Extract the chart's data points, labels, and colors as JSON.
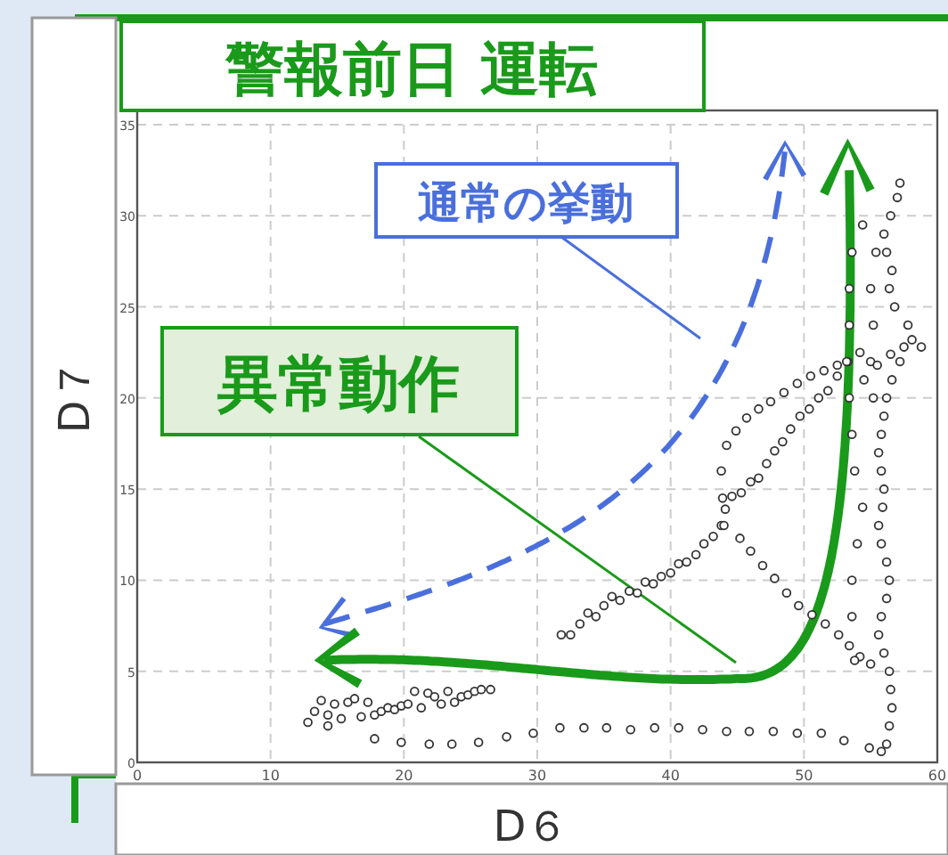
{
  "chart_data": {
    "type": "scatter",
    "title": "警報前日 運転",
    "xlabel": "D６",
    "ylabel": "D７",
    "annotations": [
      "通常の挙動",
      "異常動作"
    ],
    "x": [
      12.8,
      13.3,
      13.8,
      14.3,
      14.8,
      15.3,
      15.8,
      16.3,
      16.8,
      17.3,
      17.8,
      18.3,
      18.8,
      19.3,
      19.8,
      20.3,
      20.8,
      21.3,
      21.8,
      22.3,
      22.8,
      23.3,
      23.8,
      24.3,
      24.8,
      25.3,
      25.8,
      26.5,
      31.8,
      32.5,
      33.2,
      33.8,
      34.4,
      35,
      35.6,
      36.2,
      36.9,
      37.5,
      38.1,
      38.7,
      39.3,
      40,
      40.6,
      41.2,
      41.9,
      42.5,
      43.2,
      43.8,
      44.1,
      44.6,
      45.3,
      46,
      46.6,
      47.2,
      47.8,
      48.4,
      49,
      49.7,
      50.4,
      51.1,
      51.8,
      52.5,
      53.3,
      54.2,
      44,
      43.9,
      43.8,
      44.2,
      44.9,
      45.7,
      46.6,
      47.5,
      48.5,
      49.5,
      50.5,
      51.5,
      52.5,
      45.2,
      46,
      46.9,
      47.8,
      48.7,
      49.6,
      50.6,
      51.6,
      52.6,
      53.4,
      54.2,
      55,
      14.3,
      17.8,
      19.8,
      21.9,
      23.6,
      25.6,
      27.7,
      29.7,
      31.7,
      33.5,
      35.2,
      37,
      38.8,
      40.6,
      42.4,
      44.2,
      45.9,
      47.7,
      49.5,
      51.3,
      53,
      54.9,
      55.8,
      56.2,
      56.4,
      56.6,
      56.5,
      56.4,
      56,
      55.6,
      55.8,
      56.2,
      56.4,
      56.2,
      55.8,
      55.6,
      55.9,
      56,
      55.8,
      55.6,
      55.8,
      56,
      56.2,
      56.6,
      57.2,
      58.1,
      57.8,
      56.8,
      56.4,
      56.6,
      56.2,
      56,
      56.5,
      57,
      57.2,
      53.8,
      53.6,
      53.6,
      54,
      54.4,
      53.8,
      53.6,
      53.4,
      53.2,
      53.4,
      53.4,
      53.6,
      54.4,
      55.4,
      55,
      55.2,
      55,
      55.2,
      54.5,
      55.5,
      56.5,
      57.5,
      58.8
    ],
    "values": [
      2.2,
      2.8,
      3.4,
      2.6,
      3.2,
      2.4,
      3.3,
      3.5,
      2.5,
      3.3,
      2.6,
      2.8,
      3,
      2.9,
      3.1,
      3.2,
      3.9,
      3,
      3.8,
      3.6,
      3.2,
      3.9,
      3.3,
      3.6,
      3.7,
      3.9,
      4,
      4,
      7,
      7,
      7.6,
      8.2,
      8,
      8.6,
      9.1,
      8.9,
      9.4,
      9.3,
      9.9,
      9.8,
      10.2,
      10.4,
      10.9,
      11,
      11.4,
      12,
      12.4,
      13,
      13.9,
      14.6,
      14.8,
      15.4,
      15.6,
      16.4,
      17.1,
      17.6,
      18.3,
      19,
      19.4,
      20,
      20.4,
      21.2,
      22,
      22.5,
      13,
      14.5,
      16,
      17.4,
      18.2,
      18.9,
      19.4,
      19.8,
      20.3,
      20.8,
      21.2,
      21.5,
      21.8,
      12.3,
      11.6,
      10.8,
      10.1,
      9.3,
      8.6,
      8.1,
      7.6,
      7,
      6.4,
      5.8,
      5.4,
      2,
      1.3,
      1.1,
      1,
      1,
      1.1,
      1.4,
      1.6,
      1.9,
      1.9,
      1.9,
      1.8,
      1.9,
      1.9,
      1.8,
      1.7,
      1.7,
      1.7,
      1.6,
      1.6,
      1.2,
      0.8,
      0.6,
      1,
      2,
      3,
      4,
      5,
      6,
      7,
      8,
      9,
      10,
      11,
      12,
      13,
      14,
      15,
      16,
      17,
      18,
      19,
      20,
      21,
      22,
      23.2,
      24,
      25,
      26,
      27,
      28,
      29,
      30,
      31,
      31.8,
      5.6,
      8,
      10,
      12,
      14,
      16,
      18,
      20,
      22,
      24,
      26,
      28,
      29.5,
      28,
      26,
      24,
      22,
      20,
      21,
      21.8,
      22.4,
      22.8,
      22.8
    ],
    "color": "#333333",
    "marker": "circle",
    "grid": true,
    "xlim": [
      0,
      60
    ],
    "ylim": [
      0,
      35
    ],
    "xticks": [
      0,
      10,
      20,
      30,
      40,
      50,
      60
    ],
    "yticks": [
      0,
      5,
      10,
      15,
      20,
      25,
      30,
      35
    ]
  }
}
